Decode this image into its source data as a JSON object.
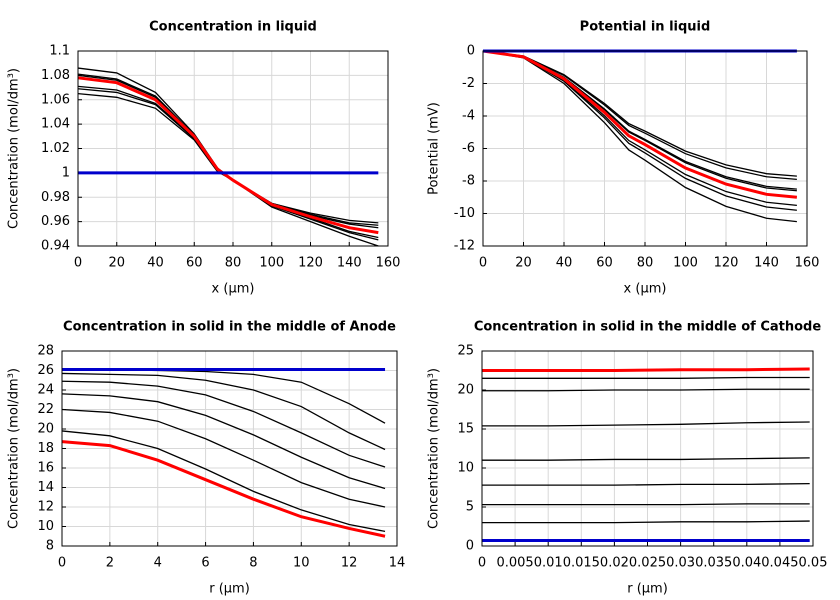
{
  "chart_data": [
    {
      "type": "line",
      "title": "Concentration in liquid",
      "xlabel": "x (µm)",
      "ylabel": "Concentration (mol/dm³)",
      "x": [
        0,
        20,
        40,
        60,
        72,
        80,
        100,
        120,
        140,
        155
      ],
      "xlim": [
        0,
        160
      ],
      "xticks": [
        0,
        20,
        40,
        60,
        80,
        100,
        120,
        140,
        160
      ],
      "ylim": [
        0.94,
        1.1
      ],
      "yticks": [
        0.94,
        0.96,
        0.98,
        1,
        1.02,
        1.04,
        1.06,
        1.08,
        1.1
      ],
      "grid": true,
      "series": [
        {
          "color": "#000000",
          "values": [
            1.086,
            1.082,
            1.066,
            1.032,
            1.004,
            0.994,
            0.972,
            0.96,
            0.948,
            0.94
          ]
        },
        {
          "color": "#000000",
          "values": [
            1.081,
            1.077,
            1.063,
            1.031,
            1.003,
            0.994,
            0.973,
            0.962,
            0.951,
            0.945
          ]
        },
        {
          "color": "#000000",
          "values": [
            1.08,
            1.076,
            1.062,
            1.03,
            1.003,
            0.994,
            0.973,
            0.963,
            0.952,
            0.947
          ]
        },
        {
          "color": "#000000",
          "values": [
            1.071,
            1.068,
            1.057,
            1.029,
            1.002,
            0.994,
            0.974,
            0.965,
            0.958,
            0.955
          ]
        },
        {
          "color": "#000000",
          "values": [
            1.069,
            1.066,
            1.056,
            1.028,
            1.002,
            0.994,
            0.975,
            0.966,
            0.959,
            0.957
          ]
        },
        {
          "color": "#000000",
          "values": [
            1.065,
            1.062,
            1.053,
            1.027,
            1.001,
            0.994,
            0.975,
            0.967,
            0.961,
            0.959
          ]
        },
        {
          "color": "#ff0000",
          "values": [
            1.078,
            1.074,
            1.06,
            1.03,
            1.003,
            0.994,
            0.974,
            0.964,
            0.955,
            0.951
          ]
        },
        {
          "color": "#0000cc",
          "values": [
            1,
            1,
            1,
            1,
            1,
            1,
            1,
            1,
            1,
            1
          ]
        }
      ]
    },
    {
      "type": "line",
      "title": "Potential in liquid",
      "xlabel": "x (µm)",
      "ylabel": "Potential (mV)",
      "x": [
        0,
        20,
        40,
        60,
        72,
        80,
        100,
        120,
        140,
        155
      ],
      "xlim": [
        0,
        160
      ],
      "xticks": [
        0,
        20,
        40,
        60,
        80,
        100,
        120,
        140,
        160
      ],
      "ylim": [
        -12,
        0
      ],
      "yticks": [
        -12,
        -10,
        -8,
        -6,
        -4,
        -2,
        0
      ],
      "grid": true,
      "series": [
        {
          "color": "#000000",
          "values": [
            0,
            -0.31,
            -1.46,
            -3.23,
            -4.47,
            -4.93,
            -6.16,
            -7.01,
            -7.55,
            -7.7
          ]
        },
        {
          "color": "#000000",
          "values": [
            0,
            -0.32,
            -1.5,
            -3.32,
            -4.58,
            -5.06,
            -6.32,
            -7.19,
            -7.74,
            -7.9
          ]
        },
        {
          "color": "#000000",
          "values": [
            0,
            -0.34,
            -1.62,
            -3.57,
            -4.93,
            -5.44,
            -6.8,
            -7.74,
            -8.33,
            -8.5
          ]
        },
        {
          "color": "#000000",
          "values": [
            0,
            -0.34,
            -1.63,
            -3.61,
            -4.99,
            -5.5,
            -6.88,
            -7.83,
            -8.43,
            -8.6
          ]
        },
        {
          "color": "#000000",
          "values": [
            0,
            -0.38,
            -1.81,
            -3.99,
            -5.51,
            -6.08,
            -7.6,
            -8.65,
            -9.31,
            -9.5
          ]
        },
        {
          "color": "#000000",
          "values": [
            0,
            -0.39,
            -1.86,
            -4.12,
            -5.68,
            -6.27,
            -7.84,
            -8.92,
            -9.6,
            -9.8
          ]
        },
        {
          "color": "#000000",
          "values": [
            0,
            -0.42,
            -2.0,
            -4.41,
            -6.09,
            -6.72,
            -8.4,
            -9.56,
            -10.29,
            -10.5
          ]
        },
        {
          "color": "#ff0000",
          "values": [
            0,
            -0.36,
            -1.71,
            -3.78,
            -5.22,
            -5.76,
            -7.2,
            -8.19,
            -8.82,
            -9.0
          ]
        },
        {
          "color": "#0000cc",
          "values": [
            0,
            0,
            0,
            0,
            0,
            0,
            0,
            0,
            0,
            0
          ]
        }
      ]
    },
    {
      "type": "line",
      "title": "Concentration in solid in the middle of Anode",
      "xlabel": "r (µm)",
      "ylabel": "Concentration (mol/dm³)",
      "x": [
        0,
        2,
        4,
        6,
        8,
        10,
        12,
        13.5
      ],
      "xlim": [
        0,
        14
      ],
      "xticks": [
        0,
        2,
        4,
        6,
        8,
        10,
        12,
        14
      ],
      "ylim": [
        8,
        28
      ],
      "yticks": [
        8,
        10,
        12,
        14,
        16,
        18,
        20,
        22,
        24,
        26,
        28
      ],
      "grid": true,
      "series": [
        {
          "color": "#000000",
          "values": [
            26.1,
            26.1,
            26.0,
            25.9,
            25.6,
            24.8,
            22.6,
            20.6
          ]
        },
        {
          "color": "#000000",
          "values": [
            25.7,
            25.6,
            25.5,
            25.0,
            24.0,
            22.3,
            19.6,
            17.9
          ]
        },
        {
          "color": "#000000",
          "values": [
            24.9,
            24.8,
            24.4,
            23.5,
            21.8,
            19.6,
            17.3,
            16.1
          ]
        },
        {
          "color": "#000000",
          "values": [
            23.6,
            23.4,
            22.8,
            21.4,
            19.4,
            17.1,
            15.0,
            13.9
          ]
        },
        {
          "color": "#000000",
          "values": [
            22.0,
            21.7,
            20.8,
            19.0,
            16.8,
            14.5,
            12.8,
            12.0
          ]
        },
        {
          "color": "#000000",
          "values": [
            19.8,
            19.3,
            18.0,
            15.9,
            13.6,
            11.7,
            10.2,
            9.5
          ]
        },
        {
          "color": "#ff0000",
          "values": [
            18.7,
            18.3,
            16.8,
            14.8,
            12.8,
            11.0,
            9.8,
            9.0
          ]
        },
        {
          "color": "#0000cc",
          "values": [
            26.1,
            26.1,
            26.1,
            26.1,
            26.1,
            26.1,
            26.1,
            26.1
          ]
        }
      ]
    },
    {
      "type": "line",
      "title": "Concentration in solid in the middle of Cathode",
      "xlabel": "r (µm)",
      "ylabel": "Concentration (mol/dm³)",
      "x": [
        0,
        0.01,
        0.02,
        0.03,
        0.04,
        0.0495
      ],
      "xlim": [
        0,
        0.05
      ],
      "xticks": [
        0,
        0.005,
        0.01,
        0.015,
        0.02,
        0.025,
        0.03,
        0.035,
        0.04,
        0.045,
        0.05
      ],
      "ylim": [
        0,
        25
      ],
      "yticks": [
        0,
        5,
        10,
        15,
        20,
        25
      ],
      "grid": true,
      "series": [
        {
          "color": "#000000",
          "values": [
            21.5,
            21.5,
            21.5,
            21.5,
            21.6,
            21.6
          ]
        },
        {
          "color": "#000000",
          "values": [
            19.9,
            19.9,
            20.0,
            20.0,
            20.1,
            20.1
          ]
        },
        {
          "color": "#000000",
          "values": [
            15.4,
            15.4,
            15.5,
            15.6,
            15.8,
            15.9
          ]
        },
        {
          "color": "#000000",
          "values": [
            11.0,
            11.0,
            11.1,
            11.1,
            11.2,
            11.3
          ]
        },
        {
          "color": "#000000",
          "values": [
            7.8,
            7.8,
            7.8,
            7.9,
            7.9,
            8.0
          ]
        },
        {
          "color": "#000000",
          "values": [
            5.3,
            5.3,
            5.3,
            5.3,
            5.4,
            5.4
          ]
        },
        {
          "color": "#000000",
          "values": [
            3.0,
            3.0,
            3.0,
            3.1,
            3.1,
            3.2
          ]
        },
        {
          "color": "#ff0000",
          "values": [
            22.5,
            22.5,
            22.5,
            22.6,
            22.6,
            22.7
          ]
        },
        {
          "color": "#0000cc",
          "values": [
            0.7,
            0.7,
            0.7,
            0.7,
            0.7,
            0.7
          ]
        }
      ]
    }
  ]
}
